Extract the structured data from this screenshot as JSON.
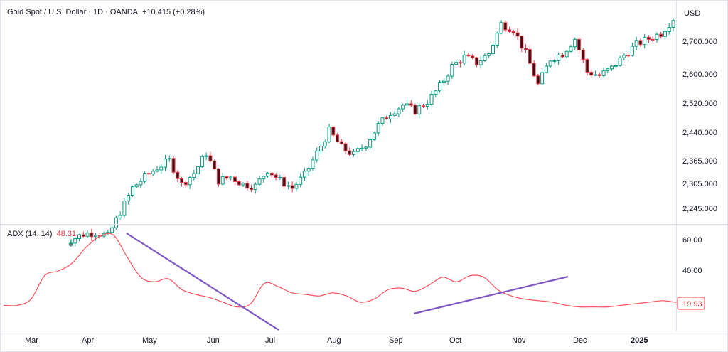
{
  "header": {
    "title": "Gold Spot / U.S. Dollar · 1D · OANDA",
    "change": "+10.415 (+0.28%)"
  },
  "price_axis": {
    "currency": "USD",
    "ticks": [
      "2,700.000",
      "2,600.000",
      "2,520.000",
      "2,440.000",
      "2,365.000",
      "2,305.000",
      "2,245.000"
    ]
  },
  "indicator": {
    "name": "ADX (14, 14)",
    "value": "48.31",
    "last_badge": "19.93",
    "ticks": [
      "60.00",
      "40.00"
    ]
  },
  "time_axis": {
    "labels": [
      "Mar",
      "Apr",
      "May",
      "Jun",
      "Jul",
      "Aug",
      "Sep",
      "Oct",
      "Nov",
      "Dec",
      "2025"
    ]
  },
  "colors": {
    "up": "#089981",
    "down": "#f23645",
    "candle_body_up": "#ffffff",
    "candle_body_down": "#3a1216",
    "adx_line": "#f7525f",
    "trendline": "#7e57c2",
    "text": "#131722"
  },
  "chart_data": [
    {
      "type": "candlestick",
      "title": "Gold Spot / U.S. Dollar · 1D · OANDA",
      "ylabel": "USD",
      "ylim": [
        2220,
        2790
      ],
      "x": [
        "Mar 1",
        "Mar 8",
        "Mar 15",
        "Mar 22",
        "Mar 29",
        "Apr 5",
        "Apr 12",
        "Apr 19",
        "Apr 26",
        "May 3",
        "May 10",
        "May 17",
        "May 24",
        "May 31",
        "Jun 7",
        "Jun 14",
        "Jun 21",
        "Jun 28",
        "Jul 5",
        "Jul 12",
        "Jul 19",
        "Jul 26",
        "Aug 2",
        "Aug 9",
        "Aug 16",
        "Aug 23",
        "Aug 30",
        "Sep 6",
        "Sep 13",
        "Sep 20",
        "Sep 27",
        "Oct 4",
        "Oct 11",
        "Oct 18",
        "Oct 25",
        "Nov 1",
        "Nov 8",
        "Nov 15",
        "Nov 22",
        "Nov 29",
        "Dec 6",
        "Dec 13",
        "Dec 20",
        "Dec 27",
        "Jan 3",
        "Jan 10",
        "Jan 17",
        "Jan 24",
        "Jan 31",
        "Feb 7"
      ],
      "close": [
        2160,
        2175,
        2180,
        2170,
        2235,
        2300,
        2330,
        2355,
        2375,
        2310,
        2340,
        2395,
        2320,
        2330,
        2310,
        2305,
        2350,
        2320,
        2300,
        2335,
        2395,
        2455,
        2410,
        2390,
        2420,
        2470,
        2505,
        2525,
        2510,
        2535,
        2575,
        2630,
        2655,
        2640,
        2665,
        2745,
        2730,
        2665,
        2580,
        2650,
        2665,
        2705,
        2615,
        2605,
        2625,
        2660,
        2690,
        2705,
        2720,
        2760
      ]
    },
    {
      "type": "line",
      "title": "ADX (14, 14)",
      "series": [
        {
          "name": "ADX (14, 14)",
          "values": [
            18,
            18,
            22,
            37,
            40,
            45,
            55,
            62,
            63,
            49,
            36,
            33,
            35,
            28,
            25,
            23,
            20,
            17,
            19,
            32,
            30,
            26,
            25,
            24,
            26,
            24,
            20,
            22,
            28,
            29,
            27,
            31,
            36,
            33,
            37,
            36,
            28,
            24,
            22,
            21,
            20,
            18,
            17,
            17,
            17,
            18,
            19,
            20,
            21,
            19.93
          ]
        }
      ],
      "yticks": [
        "60.00",
        "40.00"
      ]
    }
  ]
}
